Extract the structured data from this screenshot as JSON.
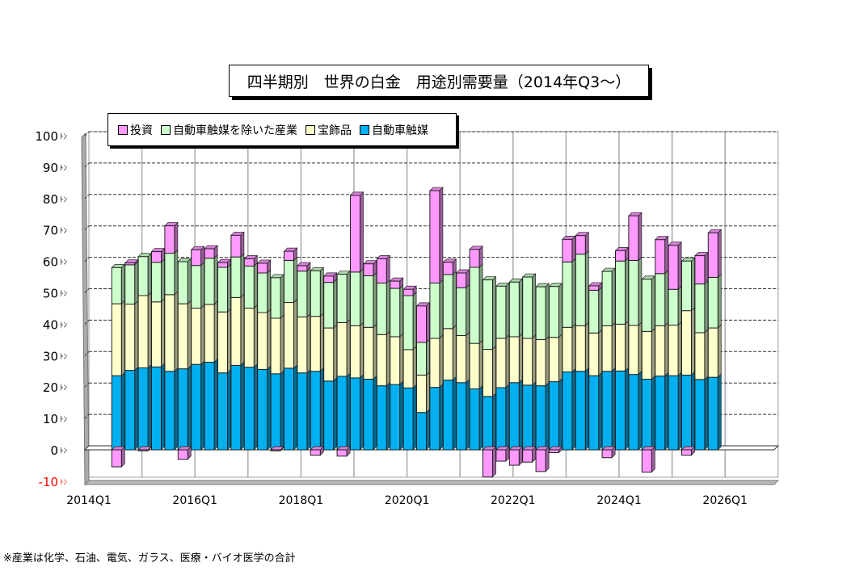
{
  "chart_data": {
    "type": "bar",
    "stacked": true,
    "title": "四半期別　世界の白金　用途別需要量（2014年Q3～）",
    "categories": [
      "2014Q3",
      "2014Q4",
      "2015Q1",
      "2015Q2",
      "2015Q3",
      "2015Q4",
      "2016Q1",
      "2016Q2",
      "2016Q3",
      "2016Q4",
      "2017Q1",
      "2017Q2",
      "2017Q3",
      "2017Q4",
      "2018Q1",
      "2018Q2",
      "2018Q3",
      "2018Q4",
      "2019Q1",
      "2019Q2",
      "2019Q3",
      "2019Q4",
      "2020Q1",
      "2020Q2",
      "2020Q3",
      "2020Q4",
      "2021Q1",
      "2021Q2",
      "2021Q3",
      "2021Q4",
      "2022Q1",
      "2022Q2",
      "2022Q3",
      "2022Q4",
      "2023Q1",
      "2023Q2",
      "2023Q3",
      "2023Q4",
      "2024Q1",
      "2024Q2",
      "2024Q3",
      "2024Q4",
      "2025Q1",
      "2025Q2",
      "2025Q3",
      "2025Q4"
    ],
    "series": [
      {
        "name": "自動車触媒",
        "color": "#00B0F0",
        "values": [
          23.6,
          25.3,
          26.1,
          26.4,
          25.0,
          25.8,
          27.2,
          27.9,
          24.5,
          26.9,
          26.3,
          25.6,
          24.2,
          26.0,
          24.5,
          25.0,
          21.9,
          23.4,
          22.9,
          22.5,
          20.4,
          20.8,
          19.7,
          11.9,
          19.9,
          22.2,
          21.4,
          19.4,
          17.0,
          19.8,
          21.4,
          20.6,
          20.4,
          21.7,
          24.8,
          25.0,
          23.6,
          25.0,
          25.1,
          24.0,
          22.5,
          23.5,
          23.6,
          23.8,
          22.4,
          23.1
        ]
      },
      {
        "name": "宝飾品",
        "color": "#FFFFCC",
        "values": [
          22.9,
          21.1,
          23.0,
          20.7,
          24.4,
          20.7,
          17.9,
          18.4,
          19.4,
          21.6,
          18.8,
          18.1,
          17.7,
          20.9,
          17.8,
          17.5,
          16.9,
          17.1,
          16.6,
          16.5,
          16.3,
          15.2,
          12.2,
          11.9,
          15.6,
          16.4,
          15.0,
          14.5,
          15.0,
          15.7,
          14.6,
          14.9,
          14.7,
          14.1,
          14.2,
          14.5,
          13.6,
          14.5,
          14.9,
          15.6,
          15.2,
          16.0,
          16.1,
          20.5,
          14.9,
          15.7
        ]
      },
      {
        "name": "自動車触媒を除いた産業",
        "color": "#CCFFCC",
        "values": [
          11.5,
          12.5,
          12.4,
          12.6,
          13.2,
          13.4,
          13.6,
          14.7,
          14.2,
          12.9,
          13.4,
          12.6,
          12.9,
          13.4,
          14.6,
          14.5,
          14.5,
          15.4,
          17.1,
          16.4,
          16.4,
          15.4,
          17.2,
          10.4,
          17.6,
          17.2,
          15.2,
          24.2,
          22.1,
          16.6,
          17.4,
          19.5,
          16.8,
          16.2,
          20.8,
          22.8,
          13.6,
          17.3,
          20.1,
          20.7,
          16.6,
          16.6,
          11.4,
          15.8,
          15.5,
          16.1
        ]
      },
      {
        "name": "投資",
        "color": "#FF99FF",
        "values": [
          -5.4,
          0.6,
          -0.3,
          3.4,
          8.7,
          -3.0,
          5.0,
          3.0,
          1.5,
          6.9,
          2.3,
          3.1,
          -0.3,
          2.9,
          1.7,
          -1.7,
          2.0,
          -2.0,
          24.4,
          3.8,
          7.7,
          2.3,
          2.0,
          11.6,
          29.4,
          3.9,
          4.7,
          5.7,
          -8.6,
          -3.6,
          -4.9,
          -3.9,
          -6.9,
          -0.9,
          7.2,
          5.9,
          1.4,
          -2.5,
          3.3,
          14.2,
          -7.1,
          10.8,
          14.0,
          -1.7,
          9.0,
          14.2
        ]
      }
    ],
    "legend_order": [
      "投資",
      "自動車触媒を除いた産業",
      "宝飾品",
      "自動車触媒"
    ],
    "legend_placement": "top-left",
    "ylim": [
      -10,
      100
    ],
    "yticks": [
      {
        "value": 100,
        "label": "100ﾄﾝ"
      },
      {
        "value": 90,
        "label": "90ﾄﾝ"
      },
      {
        "value": 80,
        "label": "80ﾄﾝ"
      },
      {
        "value": 70,
        "label": "70ﾄﾝ"
      },
      {
        "value": 60,
        "label": "60ﾄﾝ"
      },
      {
        "value": 50,
        "label": "50ﾄﾝ"
      },
      {
        "value": 40,
        "label": "40ﾄﾝ"
      },
      {
        "value": 30,
        "label": "30ﾄﾝ"
      },
      {
        "value": 20,
        "label": "20ﾄﾝ"
      },
      {
        "value": 10,
        "label": "10ﾄﾝ"
      },
      {
        "value": 0,
        "label": "0ﾄﾝ"
      },
      {
        "value": -10,
        "label": "-10ﾄﾝ"
      }
    ],
    "negative_tick_color": "#FF0000",
    "xticks": [
      "2014Q1",
      "2016Q1",
      "2018Q1",
      "2020Q1",
      "2022Q1",
      "2024Q1",
      "2026Q1"
    ],
    "xrange": [
      "2014Q1",
      "2027Q1"
    ],
    "grid": {
      "horizontal": "dashed",
      "vertical": "yearly"
    },
    "style": "3d"
  },
  "note": "※産業は化学、石油、電気、ガラス、医療・バイオ医学の合計"
}
